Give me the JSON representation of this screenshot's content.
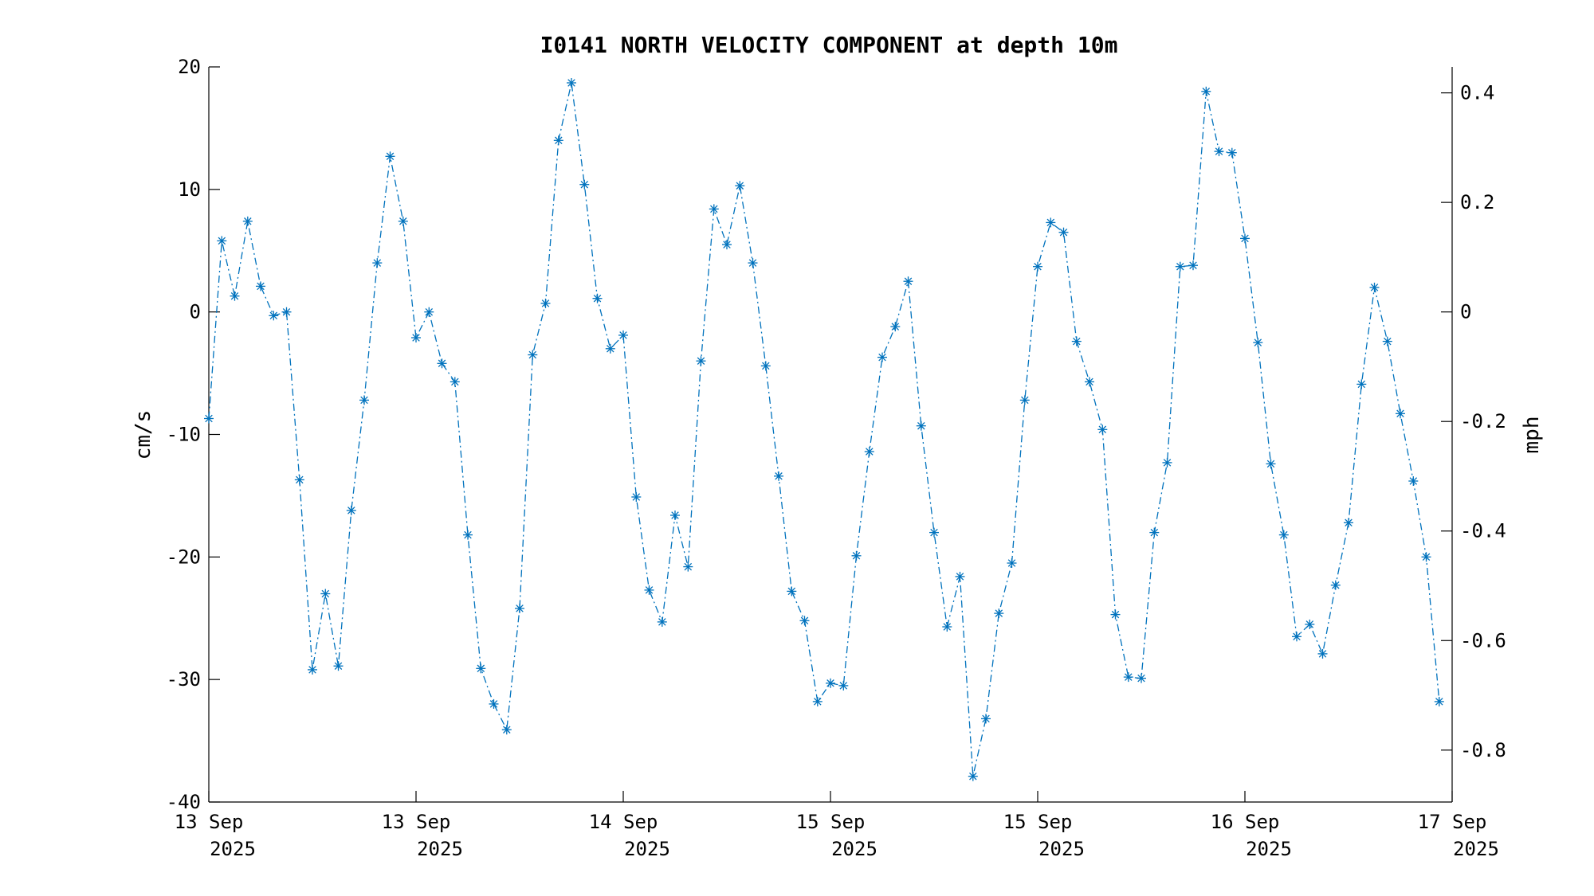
{
  "chart_data": {
    "type": "line",
    "title": "I0141 NORTH VELOCITY COMPONENT at depth 10m",
    "ylabel": "cm/s",
    "y2label": "mph",
    "ylim": [
      -40,
      20
    ],
    "y2lim": [
      -0.8948,
      0.4474
    ],
    "yticks": [
      -40,
      -30,
      -20,
      -10,
      0,
      10,
      20
    ],
    "y2ticks": [
      -0.8,
      -0.6,
      -0.4,
      -0.2,
      0,
      0.2,
      0.4
    ],
    "y2ticklabels": [
      "-0.8",
      "-0.6",
      "-0.4",
      "-0.2",
      "0",
      "0.2",
      "0.4"
    ],
    "xlim": [
      "2025-09-13T00:00",
      "2025-09-17T00:00"
    ],
    "xticks": [
      {
        "t": "2025-09-13T00:00",
        "line1": "13 Sep",
        "line2": "2025"
      },
      {
        "t": "2025-09-13T16:00",
        "line1": "13 Sep",
        "line2": "2025"
      },
      {
        "t": "2025-09-14T08:00",
        "line1": "14 Sep",
        "line2": "2025"
      },
      {
        "t": "2025-09-15T00:00",
        "line1": "15 Sep",
        "line2": "2025"
      },
      {
        "t": "2025-09-15T16:00",
        "line1": "15 Sep",
        "line2": "2025"
      },
      {
        "t": "2025-09-16T08:00",
        "line1": "16 Sep",
        "line2": "2025"
      },
      {
        "t": "2025-09-17T00:00",
        "line1": "17 Sep",
        "line2": "2025"
      }
    ],
    "color": "#0072BD",
    "line_style": "dash-dot",
    "marker": "asterisk",
    "series": [
      {
        "start": "2025-09-13T00:00",
        "step_minutes": 60,
        "values": [
          -8.7,
          5.8,
          1.3,
          7.4,
          2.1,
          -0.3,
          0.0,
          -13.7,
          -29.2,
          -23.0,
          -28.9,
          -16.2,
          -7.2,
          4.0,
          12.7,
          7.4,
          -2.1,
          0.0,
          -4.2,
          -5.7,
          -18.2,
          -29.1,
          -32.0,
          -34.1,
          -24.2,
          -3.5,
          0.7,
          14.0,
          18.7,
          10.4,
          1.1,
          -3.0,
          -1.9,
          -15.1,
          -22.7,
          -25.3,
          -16.6,
          -20.8,
          -4.0,
          8.4,
          5.5,
          10.3,
          4.0,
          -4.4,
          -13.4,
          -22.8,
          -25.2,
          -31.8,
          -30.3,
          -30.5,
          -19.9,
          -11.4,
          -3.7,
          -1.2,
          2.5,
          -9.3,
          -18.0,
          -25.7,
          -21.6,
          -37.9,
          -33.2,
          -24.6,
          -20.5,
          -7.2,
          3.7,
          7.3,
          6.5,
          -2.4,
          -5.7,
          -9.6,
          -24.7,
          -29.8,
          -29.9,
          -18.0,
          -12.3,
          3.7,
          3.8,
          18.0,
          13.1,
          13.0,
          6.0,
          -2.5,
          -12.4,
          -18.2,
          -26.5,
          -25.5,
          -27.9,
          -22.3,
          -17.2,
          -5.9,
          2.0,
          -2.4,
          -8.3,
          -13.8,
          -20.0,
          -31.8
        ]
      }
    ]
  }
}
